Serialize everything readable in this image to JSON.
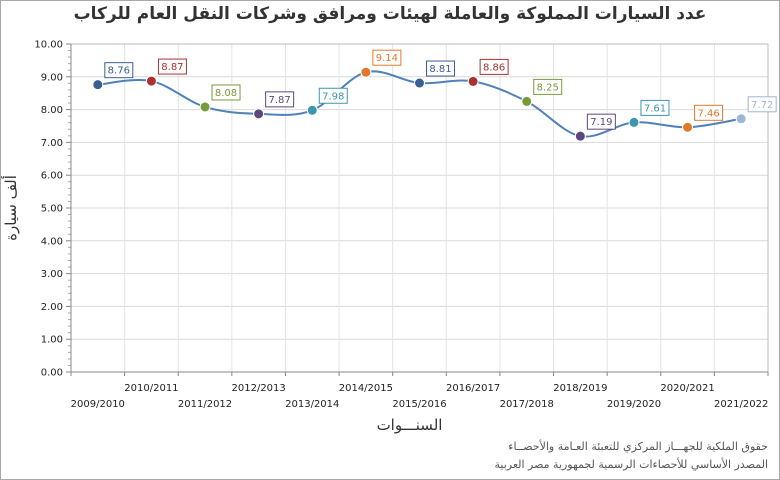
{
  "chart_data": {
    "type": "line",
    "title": "عدد السيارات المملوكة والعاملة لهيئات ومرافق وشركات النقل العام للركاب",
    "xlabel": "السنـــوات",
    "ylabel": "ألف سيارة",
    "ylim": [
      0,
      10
    ],
    "yticks": [
      "0.00",
      "1.00",
      "2.00",
      "3.00",
      "4.00",
      "5.00",
      "6.00",
      "7.00",
      "8.00",
      "9.00",
      "10.00"
    ],
    "categories": [
      "2009/2010",
      "2010/2011",
      "2011/2012",
      "2012/2013",
      "2013/2014",
      "2014/2015",
      "2015/2016",
      "2016/2017",
      "2017/2018",
      "2018/2019",
      "2019/2020",
      "2020/2021",
      "2021/2022"
    ],
    "values": [
      8.76,
      8.87,
      8.08,
      7.87,
      7.98,
      9.14,
      8.81,
      8.86,
      8.25,
      7.19,
      7.61,
      7.46,
      7.72
    ],
    "labels": [
      "8.76",
      "8.87",
      "8.08",
      "7.87",
      "7.98",
      "9.14",
      "8.81",
      "8.86",
      "8.25",
      "7.19",
      "7.61",
      "7.46",
      "7.72"
    ],
    "point_colors": [
      "#3a5f94",
      "#a83232",
      "#7a9a3a",
      "#5e467f",
      "#3a97ad",
      "#e2782a",
      "#3a5f94",
      "#a83232",
      "#7a9a3a",
      "#5e467f",
      "#3a97ad",
      "#e2782a",
      "#9fb6d6"
    ],
    "line_color": "#4f81bd",
    "grid": true
  },
  "footer": {
    "line1": "حقوق الملكية للجهـــاز المركزي للتعبئة العـامة والأحصــاء",
    "line2": "المصدر الأساسي للأحصاءات الرسمية لجمهورية مصر العربية"
  }
}
